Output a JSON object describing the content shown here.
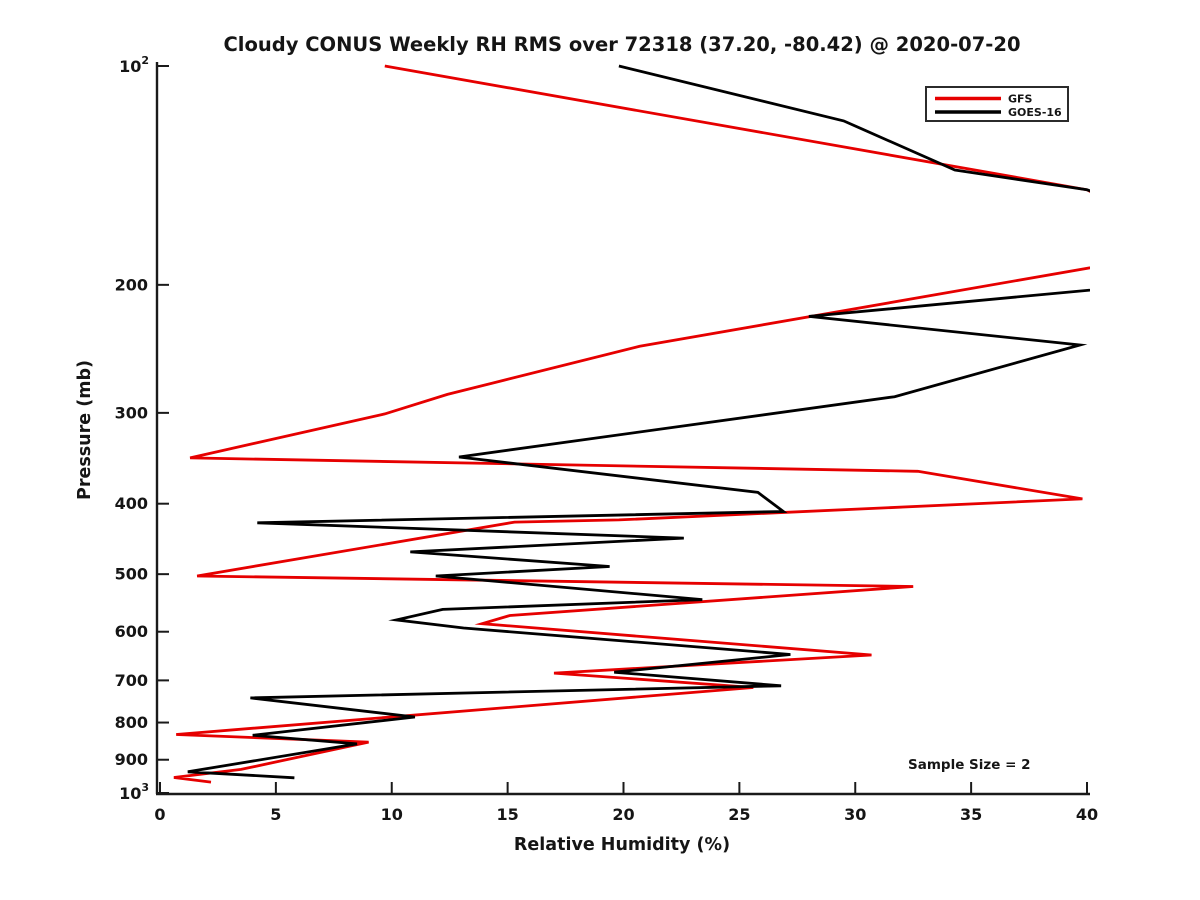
{
  "title": "Cloudy CONUS Weekly RH RMS over 72318 (37.20, -80.42) @ 2020-07-20",
  "annotation": "Sample Size = 2",
  "legend": {
    "position": "top-right",
    "entries": [
      {
        "label": "GFS",
        "color": "#e60000"
      },
      {
        "label": "GOES-16",
        "color": "#000000"
      }
    ]
  },
  "axes": {
    "xlabel": "Relative Humidity (%)",
    "ylabel": "Pressure (mb)",
    "xlim": [
      0,
      40
    ],
    "x_ticks": [
      0,
      5,
      10,
      15,
      20,
      25,
      30,
      35,
      40
    ],
    "y_scale": "log",
    "y_inverted": true,
    "ylim": [
      100,
      1000
    ],
    "y_ticks": [
      200,
      300,
      400,
      500,
      600,
      700,
      800,
      900
    ],
    "y_log_tick_labels": [
      {
        "base": "10",
        "exp": "2",
        "value": 100
      },
      {
        "base": "10",
        "exp": "3",
        "value": 1000
      }
    ],
    "grid": false
  },
  "chart_data": {
    "type": "line",
    "title": "Cloudy CONUS Weekly RH RMS over 72318 (37.20, -80.42) @ 2020-07-20",
    "xlabel": "Relative Humidity (%)",
    "ylabel": "Pressure (mb)",
    "xlim": [
      0,
      40
    ],
    "ylim": [
      100,
      1000
    ],
    "y_scale": "log-inverted",
    "legend_position": "top-right",
    "grid": false,
    "annotation": "Sample Size = 2",
    "point_format": "[relative_humidity_percent, pressure_mb]",
    "series": [
      {
        "name": "GFS",
        "color": "#e60000",
        "points": [
          [
            9.7,
            100
          ],
          [
            40,
            148
          ],
          [
            45,
            178
          ],
          [
            20.7,
            243
          ],
          [
            12.4,
            283
          ],
          [
            9.7,
            301
          ],
          [
            1.3,
            346
          ],
          [
            32.7,
            361
          ],
          [
            39.8,
            394
          ],
          [
            19.8,
            421
          ],
          [
            15.3,
            424
          ],
          [
            1.6,
            503
          ],
          [
            32.5,
            520
          ],
          [
            15.1,
            570
          ],
          [
            13.9,
            585
          ],
          [
            30.7,
            646
          ],
          [
            17.0,
            684
          ],
          [
            25.6,
            716
          ],
          [
            0.7,
            831
          ],
          [
            9.0,
            851
          ],
          [
            3.5,
            928
          ],
          [
            0.6,
            952
          ],
          [
            2.2,
            966
          ]
        ]
      },
      {
        "name": "GOES-16",
        "color": "#000000",
        "points": [
          [
            19.8,
            100
          ],
          [
            29.5,
            119
          ],
          [
            34.3,
            139
          ],
          [
            40,
            148
          ],
          [
            50,
            190
          ],
          [
            28.0,
            221
          ],
          [
            39.7,
            242
          ],
          [
            31.7,
            285
          ],
          [
            12.9,
            345
          ],
          [
            25.8,
            386
          ],
          [
            26.9,
            410
          ],
          [
            4.2,
            425
          ],
          [
            22.6,
            446
          ],
          [
            10.8,
            466
          ],
          [
            19.4,
            488
          ],
          [
            11.9,
            503
          ],
          [
            23.4,
            542
          ],
          [
            12.2,
            559
          ],
          [
            10.2,
            578
          ],
          [
            13.1,
            593
          ],
          [
            27.2,
            645
          ],
          [
            19.6,
            682
          ],
          [
            26.8,
            712
          ],
          [
            3.9,
            740
          ],
          [
            11.0,
            786
          ],
          [
            4.0,
            833
          ],
          [
            8.5,
            856
          ],
          [
            1.2,
            935
          ],
          [
            5.8,
            953
          ]
        ]
      }
    ]
  }
}
